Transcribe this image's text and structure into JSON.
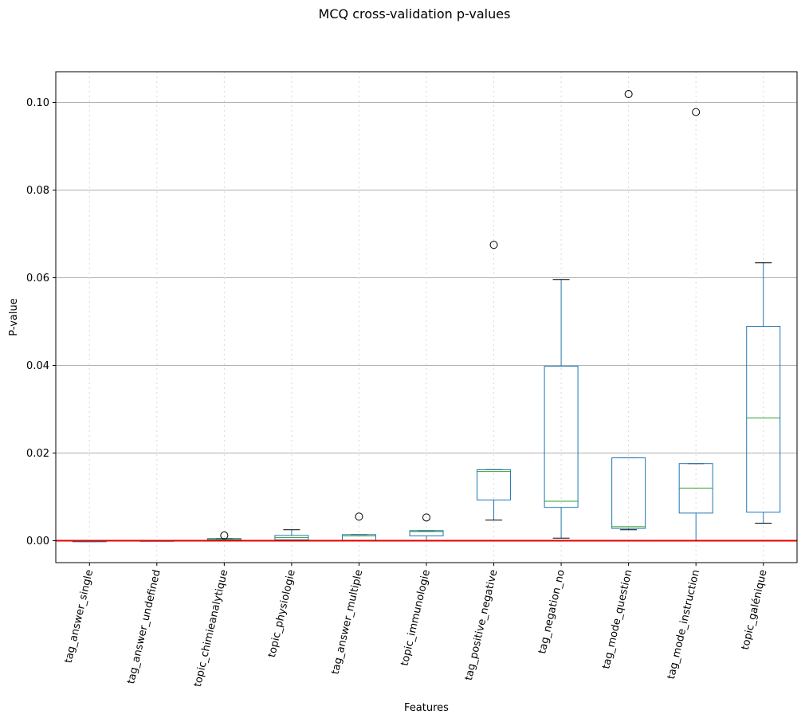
{
  "chart_data": {
    "type": "box",
    "title": "MCQ cross-validation p-values",
    "xlabel": "Features",
    "ylabel": "P-value",
    "ylim": [
      -0.005,
      0.107
    ],
    "yticks": [
      "0.00",
      "0.02",
      "0.04",
      "0.06",
      "0.08",
      "0.10"
    ],
    "ytick_values": [
      0.0,
      0.02,
      0.04,
      0.06,
      0.08,
      0.1
    ],
    "grid": "horizontal",
    "reference_line": {
      "y": 0.0,
      "color": "#e00000"
    },
    "colors": {
      "box": "#1f77b4",
      "median": "#2ca02c",
      "whisker_cap": "#000000",
      "grid": "#b0b0b0"
    },
    "categories": [
      "tag_answer_single",
      "tag_answer_undefined",
      "topic_chimieanalytique",
      "topic_physiologie",
      "tag_answer_multiple",
      "topic_immunologie",
      "tag_positive_negative",
      "tag_negation_no",
      "tag_mode_question",
      "tag_mode_instruction",
      "topic_galénique"
    ],
    "boxes": [
      {
        "whislo": -0.0002,
        "q1": -0.0001,
        "med": -0.0001,
        "q3": -0.0001,
        "whishi": -0.0001,
        "fliers": []
      },
      {
        "whislo": -0.0001,
        "q1": 0.0,
        "med": 0.0,
        "q3": 0.0,
        "whishi": 0.0001,
        "fliers": []
      },
      {
        "whislo": 0.0,
        "q1": 0.0001,
        "med": 0.0003,
        "q3": 0.0005,
        "whishi": 0.0005,
        "fliers": [
          0.0012
        ]
      },
      {
        "whislo": 0.0,
        "q1": 0.0002,
        "med": 0.0007,
        "q3": 0.0012,
        "whishi": 0.0025,
        "fliers": []
      },
      {
        "whislo": 0.0,
        "q1": 0.0001,
        "med": 0.0011,
        "q3": 0.0014,
        "whishi": 0.0014,
        "fliers": [
          0.0055
        ]
      },
      {
        "whislo": 0.0001,
        "q1": 0.0011,
        "med": 0.0021,
        "q3": 0.0023,
        "whishi": 0.0023,
        "fliers": [
          0.0053
        ]
      },
      {
        "whislo": 0.0047,
        "q1": 0.0093,
        "med": 0.0158,
        "q3": 0.0162,
        "whishi": 0.0162,
        "fliers": [
          0.0675
        ]
      },
      {
        "whislo": 0.0006,
        "q1": 0.0076,
        "med": 0.009,
        "q3": 0.0398,
        "whishi": 0.0596,
        "fliers": []
      },
      {
        "whislo": 0.0025,
        "q1": 0.0028,
        "med": 0.0032,
        "q3": 0.0189,
        "whishi": 0.0189,
        "fliers": [
          0.1019
        ]
      },
      {
        "whislo": 0.0001,
        "q1": 0.0063,
        "med": 0.012,
        "q3": 0.0176,
        "whishi": 0.0176,
        "fliers": [
          0.0978
        ]
      },
      {
        "whislo": 0.004,
        "q1": 0.0065,
        "med": 0.028,
        "q3": 0.0489,
        "whishi": 0.0634,
        "fliers": []
      }
    ]
  }
}
